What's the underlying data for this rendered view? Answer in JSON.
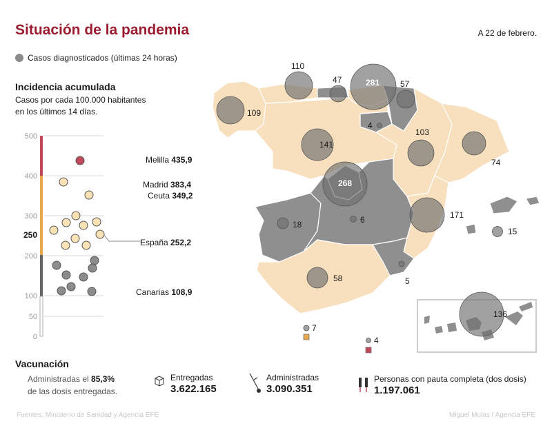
{
  "header": {
    "title": "Situación de la pandemia",
    "date": "A 22 de febrero."
  },
  "legend": {
    "label": "Casos diagnosticados (últimas 24 horas)"
  },
  "incidence": {
    "title": "Incidencia acumulada",
    "subtitle_line1": "Casos por cada 100.000 habitantes",
    "subtitle_line2": "en los últimos 14 días.",
    "axis_ticks": [
      "500",
      "400",
      "300",
      "250",
      "200",
      "100",
      "50",
      "0"
    ],
    "highlights": [
      {
        "name": "Melilla",
        "value": "435,9"
      },
      {
        "name": "Madrid",
        "value": "383,4"
      },
      {
        "name": "Ceuta",
        "value": "349,2"
      },
      {
        "name": "España",
        "value": "252,2"
      },
      {
        "name": "Canarias",
        "value": "108,9"
      }
    ]
  },
  "map": {
    "regions": [
      {
        "name": "Galicia",
        "cases": "109",
        "color": "#8c8c8c"
      },
      {
        "name": "Asturias",
        "cases": "110",
        "color": "#8c8c8c"
      },
      {
        "name": "Cantabria",
        "cases": "47",
        "color": "#8c8c8c"
      },
      {
        "name": "País Vasco",
        "cases": "281",
        "color": "#8c8c8c"
      },
      {
        "name": "Navarra",
        "cases": "57",
        "color": "#8c8c8c"
      },
      {
        "name": "La Rioja",
        "cases": "4",
        "color": "#8c8c8c"
      },
      {
        "name": "Castilla y León",
        "cases": "141",
        "color": "#8c8c8c"
      },
      {
        "name": "Aragón",
        "cases": "103",
        "color": "#8c8c8c"
      },
      {
        "name": "Cataluña",
        "cases": "74",
        "color": "#8c8c8c"
      },
      {
        "name": "Madrid",
        "cases": "268",
        "color": "#8c8c8c"
      },
      {
        "name": "Extremadura",
        "cases": "18",
        "color": "#8c8c8c"
      },
      {
        "name": "Castilla-La Mancha",
        "cases": "6",
        "color": "#8c8c8c"
      },
      {
        "name": "C. Valenciana",
        "cases": "171",
        "color": "#8c8c8c"
      },
      {
        "name": "Baleares",
        "cases": "15",
        "color": "#8c8c8c"
      },
      {
        "name": "Murcia",
        "cases": "5",
        "color": "#8c8c8c"
      },
      {
        "name": "Andalucía",
        "cases": "58",
        "color": "#8c8c8c"
      },
      {
        "name": "Canarias",
        "cases": "136",
        "color": "#8c8c8c"
      },
      {
        "name": "Ceuta",
        "cases": "7",
        "color": "#8c8c8c"
      },
      {
        "name": "Melilla",
        "cases": "4",
        "color": "#8c8c8c"
      }
    ]
  },
  "vaccination": {
    "title": "Vacunación",
    "line1_prefix": "Administradas el ",
    "line1_value": "85,3%",
    "line2": "de las dosis entregadas.",
    "delivered_label": "Entregadas",
    "delivered_value": "3.622.165",
    "administered_label": "Administradas",
    "administered_value": "3.090.351",
    "complete_label": "Personas con pauta completa (dos dosis)",
    "complete_value": "1.197.061"
  },
  "footer": {
    "sources": "Fuentes: Ministerio de Sanidad y Agencia EFE",
    "credit": "Miguel Mulas / Agencia EFE"
  },
  "colors": {
    "title_red": "#9b1c31",
    "beige": "#f8dfbd",
    "gray_region": "#8f8f90",
    "bubble": "#6e6e6e",
    "melilla_pink": "#c0485a",
    "ceuta_orange": "#e8a84a"
  }
}
